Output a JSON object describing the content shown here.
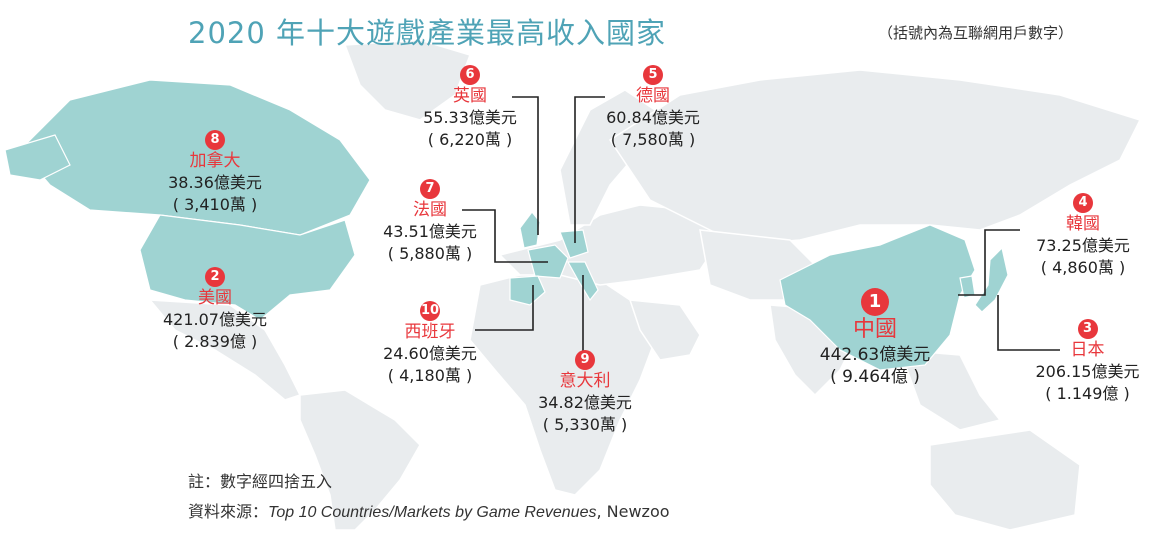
{
  "title": "2020 年十大遊戲產業最高收入國家",
  "subtitle": "（括號內為互聯網用戶數字）",
  "colors": {
    "highlight_land": "#9fd3d2",
    "other_land": "#e9ecee",
    "accent": "#e8373c",
    "title": "#4fa3b6"
  },
  "countries": {
    "china": {
      "rank": "1",
      "name": "中國",
      "revenue": "442.63億美元",
      "users": "( 9.464億 )"
    },
    "usa": {
      "rank": "2",
      "name": "美國",
      "revenue": "421.07億美元",
      "users": "( 2.839億 )"
    },
    "japan": {
      "rank": "3",
      "name": "日本",
      "revenue": "206.15億美元",
      "users": "( 1.149億 )"
    },
    "korea": {
      "rank": "4",
      "name": "韓國",
      "revenue": "73.25億美元",
      "users": "( 4,860萬 )"
    },
    "germany": {
      "rank": "5",
      "name": "德國",
      "revenue": "60.84億美元",
      "users": "( 7,580萬 )"
    },
    "uk": {
      "rank": "6",
      "name": "英國",
      "revenue": "55.33億美元",
      "users": "( 6,220萬 )"
    },
    "france": {
      "rank": "7",
      "name": "法國",
      "revenue": "43.51億美元",
      "users": "( 5,880萬 )"
    },
    "canada": {
      "rank": "8",
      "name": "加拿大",
      "revenue": "38.36億美元",
      "users": "( 3,410萬 )"
    },
    "italy": {
      "rank": "9",
      "name": "意大利",
      "revenue": "34.82億美元",
      "users": "( 5,330萬 )"
    },
    "spain": {
      "rank": "10",
      "name": "西班牙",
      "revenue": "24.60億美元",
      "users": "( 4,180萬 )"
    }
  },
  "footnote": {
    "note": "註：數字經四捨五入",
    "source_prefix": "資料來源：",
    "source_title": "Top 10 Countries/Markets by Game Revenues",
    "source_suffix": ", Newzoo"
  }
}
